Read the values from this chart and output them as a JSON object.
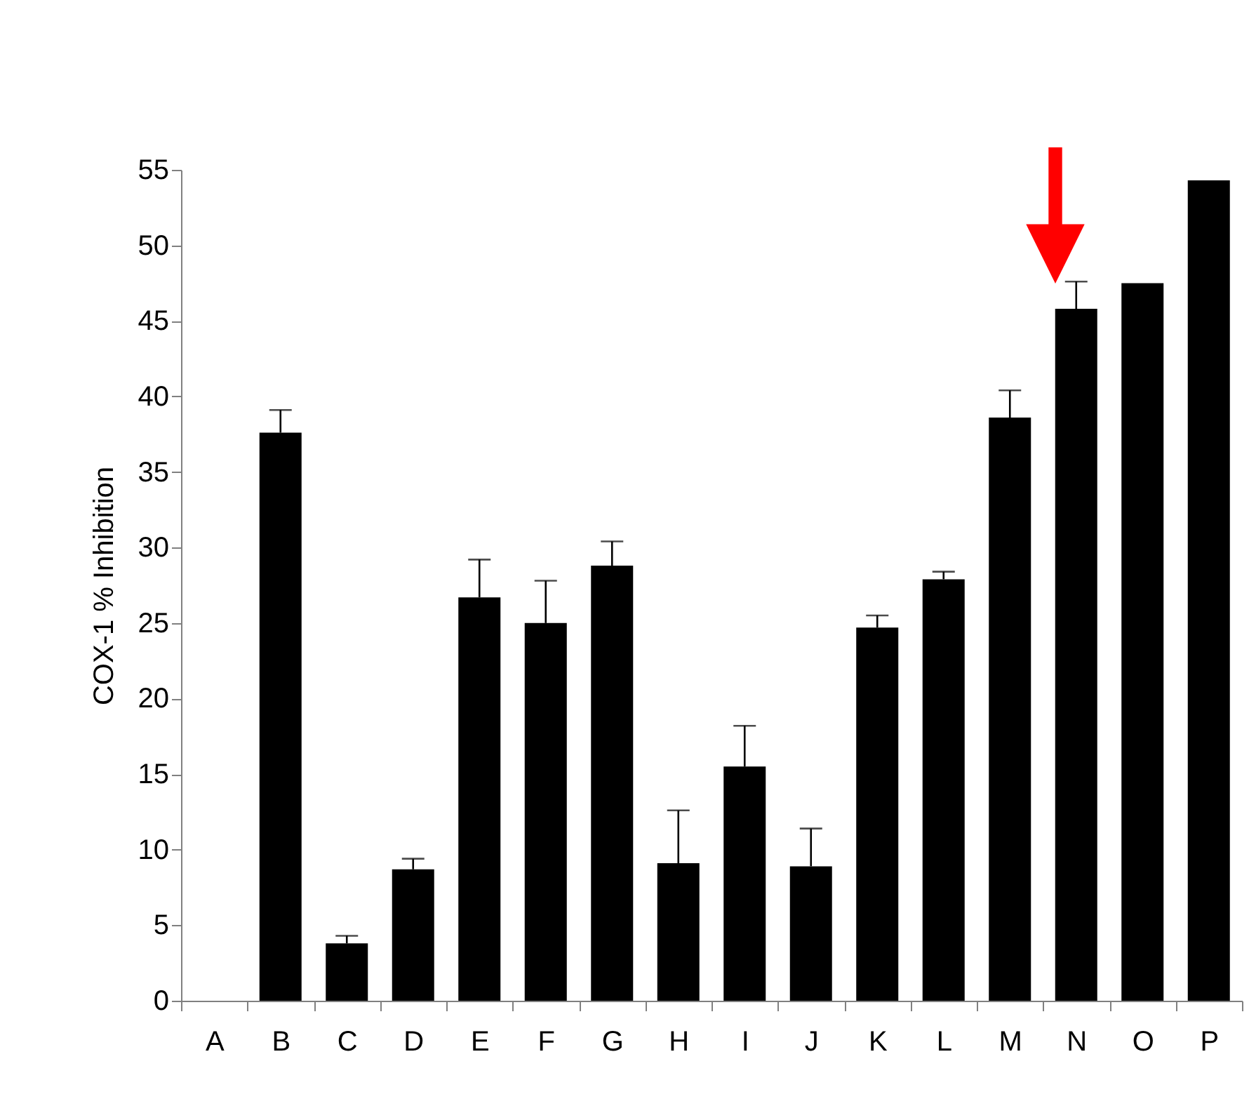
{
  "chart_data": {
    "type": "bar",
    "ylabel": "COX-1 % Inhibition",
    "categories": [
      "A",
      "B",
      "C",
      "D",
      "E",
      "F",
      "G",
      "H",
      "I",
      "J",
      "K",
      "L",
      "M",
      "N",
      "O",
      "P"
    ],
    "series": [
      {
        "color": "#000000",
        "values": [
          0,
          37.6,
          3.8,
          8.7,
          26.7,
          25.0,
          28.8,
          9.1,
          15.5,
          8.9,
          24.7,
          27.9,
          38.6,
          45.8,
          47.5,
          54.3
        ],
        "errors": [
          null,
          [
            37.6,
            39.1
          ],
          [
            3.8,
            4.3
          ],
          [
            8.7,
            9.4
          ],
          [
            26.7,
            29.2
          ],
          [
            25.0,
            27.8
          ],
          [
            28.8,
            30.4
          ],
          [
            9.1,
            12.6
          ],
          [
            15.5,
            18.2
          ],
          [
            8.9,
            11.4
          ],
          [
            24.7,
            25.5
          ],
          [
            27.9,
            28.4
          ],
          [
            38.6,
            40.4
          ],
          [
            45.8,
            47.6
          ],
          null,
          null
        ]
      }
    ],
    "ylim": [
      0,
      55
    ],
    "yticks": [
      0,
      5,
      10,
      15,
      20,
      25,
      30,
      35,
      40,
      45,
      50,
      55
    ],
    "grid": false
  }
}
